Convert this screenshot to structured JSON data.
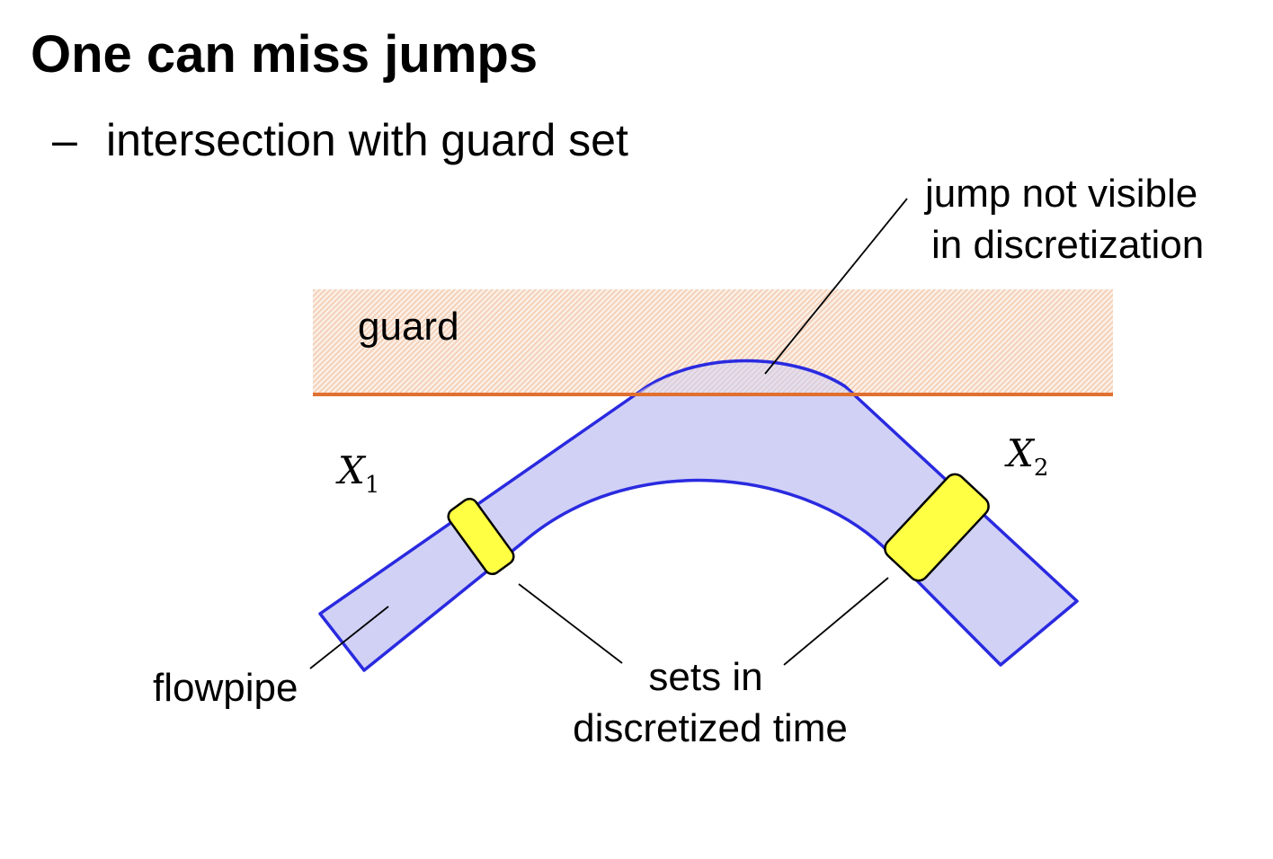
{
  "slide": {
    "title": "One can miss jumps",
    "bullet_marker": "–",
    "bullet_text": "intersection with guard set"
  },
  "diagram": {
    "guard_label": "guard",
    "jump_note_line1": "jump not visible",
    "jump_note_line2": "in discretization",
    "x1_symbol": "X",
    "x1_subscript": "1",
    "x2_symbol": "X",
    "x2_subscript": "2",
    "flowpipe_label": "flowpipe",
    "sets_label_line1": "sets in",
    "sets_label_line2": "discretized time"
  },
  "colors": {
    "guard_line": "#e07030",
    "guard_hatch": "#f2c9ad",
    "flowpipe_fill": "#ccccf5",
    "flowpipe_stroke": "#2a2ae0",
    "set_fill": "#ffff44",
    "set_stroke": "#000000"
  }
}
